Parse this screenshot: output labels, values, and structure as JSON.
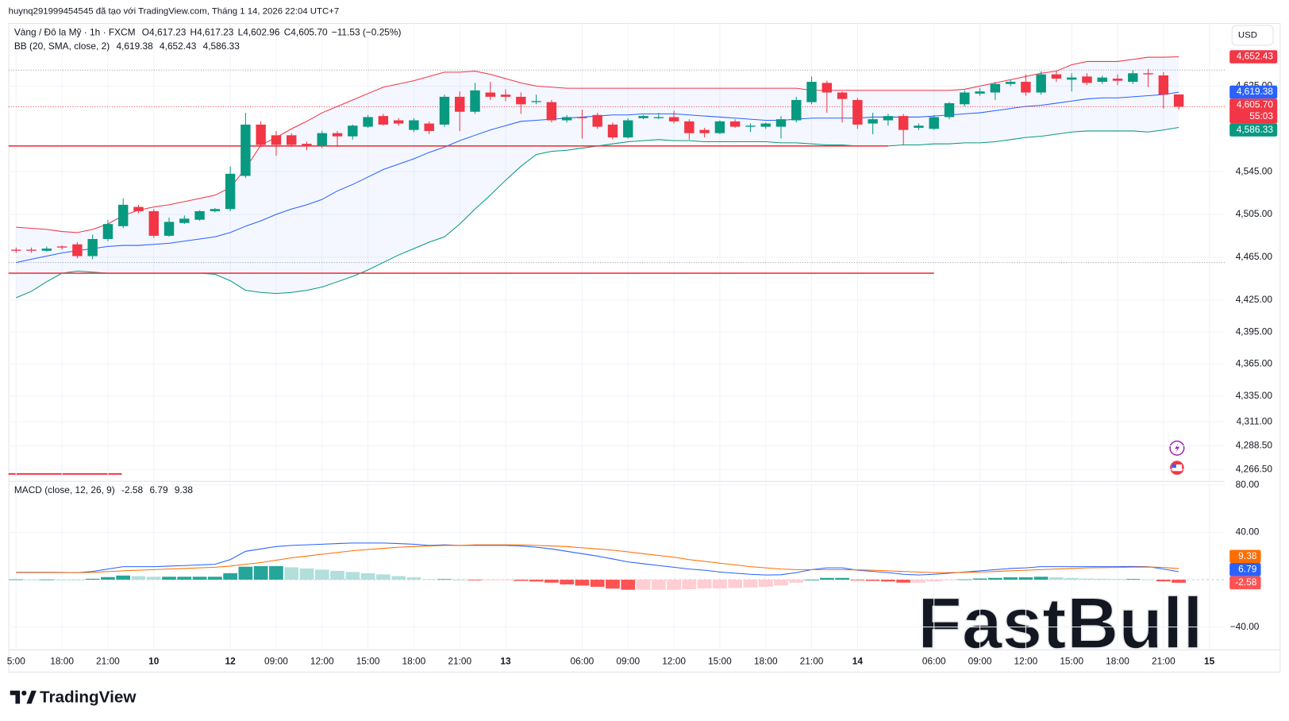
{
  "header": {
    "attribution": "huynq291999454545 đã tạo với TradingView.com, Tháng 1 14, 2026 22:04 UTC+7",
    "symbol": "Vàng / Đô la Mỹ · 1h · FXCM",
    "ohlc": [
      {
        "key": "O",
        "value": "4,617.23"
      },
      {
        "key": "H",
        "value": "4,617.23"
      },
      {
        "key": "L",
        "value": "4,602.96"
      },
      {
        "key": "C",
        "value": "4,605.70"
      }
    ],
    "change": "−11.53 (−0.25%)",
    "countdown": "55:03",
    "currency": "USD",
    "brand": "TradingView",
    "watermark": "FastBull"
  },
  "chart_data": [
    {
      "type": "candlestick",
      "xlim": [
        -0.5,
        79
      ],
      "ylim": [
        4258,
        4684
      ],
      "grid": true,
      "xticks": [
        {
          "value": 0,
          "label": "5:00"
        },
        {
          "value": 3,
          "label": "18:00"
        },
        {
          "value": 6,
          "label": "21:00"
        },
        {
          "value": 9,
          "label": "10"
        },
        {
          "value": 14,
          "label": "12"
        },
        {
          "value": 17,
          "label": "09:00"
        },
        {
          "value": 20,
          "label": "12:00"
        },
        {
          "value": 23,
          "label": "15:00"
        },
        {
          "value": 26,
          "label": "18:00"
        },
        {
          "value": 29,
          "label": "21:00"
        },
        {
          "value": 32,
          "label": "13"
        },
        {
          "value": 37,
          "label": "06:00"
        },
        {
          "value": 40,
          "label": "09:00"
        },
        {
          "value": 43,
          "label": "12:00"
        },
        {
          "value": 46,
          "label": "15:00"
        },
        {
          "value": 49,
          "label": "18:00"
        },
        {
          "value": 52,
          "label": "21:00"
        },
        {
          "value": 55,
          "label": "14"
        },
        {
          "value": 60,
          "label": "06:00"
        },
        {
          "value": 63,
          "label": "09:00"
        },
        {
          "value": 66,
          "label": "12:00"
        },
        {
          "value": 69,
          "label": "15:00"
        },
        {
          "value": 72,
          "label": "18:00"
        },
        {
          "value": 75,
          "label": "21:00"
        },
        {
          "value": 78,
          "label": "15"
        }
      ],
      "yticks": [
        {
          "value": 4625,
          "label": "4,625.00"
        },
        {
          "value": 4545,
          "label": "4,545.00"
        },
        {
          "value": 4505,
          "label": "4,505.00"
        },
        {
          "value": 4465,
          "label": "4,465.00"
        },
        {
          "value": 4425,
          "label": "4,425.00"
        },
        {
          "value": 4395,
          "label": "4,395.00"
        },
        {
          "value": 4365,
          "label": "4,365.00"
        },
        {
          "value": 4335,
          "label": "4,335.00"
        },
        {
          "value": 4311,
          "label": "4,311.00"
        },
        {
          "value": 4288.5,
          "label": "4,288.50"
        },
        {
          "value": 4266.5,
          "label": "4,266.50"
        }
      ],
      "up_color": "#089981",
      "down_color": "#f23645",
      "candles": {
        "open": [
          4472,
          4472,
          4471,
          4475,
          4477,
          4466,
          4482,
          4494,
          4512,
          4508,
          4485,
          4497,
          4500,
          4508,
          4510,
          4541,
          4589,
          4579,
          4579,
          4571,
          4569,
          4581,
          4578,
          4587,
          4597,
          4593,
          4584,
          4590,
          4589,
          4615,
          4601,
          4619,
          4617,
          4615,
          4610,
          4610,
          4593,
          4596,
          4598,
          4589,
          4577,
          4595,
          4595,
          4596,
          4592,
          4584,
          4581,
          4592,
          4587,
          4587,
          4587,
          4593,
          4610,
          4628,
          4619,
          4612,
          4590,
          4593,
          4597,
          4586,
          4585,
          4596,
          4608,
          4618,
          4619,
          4627,
          4629,
          4619,
          4636,
          4631,
          4634,
          4629,
          4632,
          4629,
          4637,
          4635,
          4617.23
        ],
        "high": [
          4474,
          4474,
          4475,
          4476,
          4479,
          4486,
          4500,
          4520,
          4514,
          4510,
          4502,
          4504,
          4509,
          4511,
          4550,
          4600,
          4592,
          4583,
          4581,
          4573,
          4583,
          4583,
          4589,
          4598,
          4599,
          4595,
          4595,
          4592,
          4617,
          4620,
          4628,
          4629,
          4622,
          4619,
          4617,
          4612,
          4598,
          4603,
          4600,
          4591,
          4595,
          4598,
          4600,
          4602,
          4594,
          4586,
          4593,
          4594,
          4590,
          4591,
          4597,
          4615,
          4634,
          4630,
          4620,
          4614,
          4600,
          4599,
          4599,
          4590,
          4598,
          4610,
          4621,
          4623,
          4629,
          4631,
          4636,
          4639,
          4639,
          4637,
          4637,
          4635,
          4636,
          4640,
          4641,
          4638,
          4617.23
        ],
        "low": [
          4469,
          4469,
          4470,
          4472,
          4464,
          4463,
          4480,
          4492,
          4506,
          4483,
          4484,
          4496,
          4499,
          4507,
          4508,
          4539,
          4568,
          4560,
          4568,
          4565,
          4567,
          4568,
          4575,
          4586,
          4588,
          4588,
          4582,
          4580,
          4587,
          4583,
          4599,
          4612,
          4611,
          4599,
          4608,
          4591,
          4591,
          4576,
          4585,
          4575,
          4576,
          4594,
          4594,
          4590,
          4575,
          4577,
          4580,
          4586,
          4582,
          4585,
          4576,
          4591,
          4608,
          4600,
          4591,
          4585,
          4580,
          4588,
          4570,
          4584,
          4584,
          4594,
          4606,
          4616,
          4612,
          4625,
          4616,
          4617,
          4629,
          4620,
          4626,
          4627,
          4626,
          4627,
          4624,
          4604,
          4602.96
        ],
        "close": [
          4471,
          4471,
          4473,
          4474,
          4466,
          4482,
          4496,
          4514,
          4508,
          4485,
          4498,
          4501,
          4508,
          4510,
          4543,
          4589,
          4570,
          4570,
          4570,
          4569,
          4581,
          4578,
          4588,
          4596,
          4589,
          4590,
          4593,
          4583,
          4615,
          4601,
          4621,
          4615,
          4615,
          4608,
          4611,
          4593,
          4596,
          4595,
          4587,
          4577,
          4593,
          4597,
          4596,
          4592,
          4581,
          4581,
          4592,
          4587,
          4588,
          4590,
          4594,
          4612,
          4629,
          4619,
          4613,
          4589,
          4594,
          4597,
          4584,
          4588,
          4596,
          4609,
          4619,
          4620,
          4627,
          4629,
          4619,
          4636,
          4632,
          4633,
          4628,
          4633,
          4630,
          4637,
          4636,
          4617,
          4605.7
        ]
      },
      "bands": {
        "label": "BB (20, SMA, close, 2)",
        "fill": "#2962ff",
        "lines": [
          {
            "color": "#2962ff",
            "value_label": "4,619.38",
            "values": [
              4460,
              4463,
              4466,
              4469,
              4471,
              4473,
              4475,
              4476,
              4476,
              4477,
              4478,
              4480,
              4482,
              4484,
              4488,
              4494,
              4499,
              4505,
              4510,
              4514,
              4519,
              4527,
              4533,
              4540,
              4547,
              4552,
              4557,
              4563,
              4568,
              4574,
              4579,
              4584,
              4588,
              4592,
              4593,
              4594,
              4595,
              4596,
              4597,
              4598,
              4598,
              4599,
              4599,
              4599,
              4598,
              4597,
              4596,
              4595,
              4594,
              4593,
              4593,
              4594,
              4595,
              4595,
              4595,
              4595,
              4596,
              4596,
              4596,
              4596,
              4597,
              4598,
              4599,
              4600,
              4602,
              4604,
              4606,
              4607,
              4609,
              4611,
              4613,
              4614,
              4614,
              4615,
              4616,
              4617,
              4619.38
            ]
          },
          {
            "color": "#f23645",
            "value_label": "4,652.43",
            "values": [
              4493,
              4492,
              4491,
              4489,
              4488,
              4491,
              4496,
              4504,
              4509,
              4512,
              4514,
              4517,
              4520,
              4523,
              4530,
              4548,
              4570,
              4577,
              4585,
              4592,
              4600,
              4606,
              4612,
              4618,
              4624,
              4627,
              4630,
              4634,
              4638,
              4638,
              4639,
              4636,
              4632,
              4628,
              4625,
              4624,
              4623,
              4623,
              4623,
              4623,
              4623,
              4623,
              4623,
              4623,
              4623,
              4623,
              4623,
              4623,
              4623,
              4623,
              4623,
              4623,
              4621,
              4621,
              4621,
              4621,
              4621,
              4621,
              4621,
              4621,
              4621,
              4621,
              4622,
              4625,
              4628,
              4631,
              4634,
              4637,
              4639,
              4645,
              4648,
              4648,
              4648,
              4650,
              4652,
              4652,
              4652.43
            ]
          },
          {
            "color": "#089981",
            "value_label": "4,586.33",
            "values": [
              4427,
              4433,
              4442,
              4450,
              4452,
              4451,
              4450,
              4450,
              4450,
              4450,
              4450,
              4450,
              4450,
              4449,
              4443,
              4434,
              4432,
              4431,
              4432,
              4434,
              4437,
              4442,
              4447,
              4453,
              4460,
              4467,
              4473,
              4479,
              4484,
              4496,
              4510,
              4523,
              4537,
              4550,
              4561,
              4564,
              4565,
              4567,
              4569,
              4571,
              4573,
              4574,
              4575,
              4574,
              4574,
              4573,
              4573,
              4573,
              4573,
              4573,
              4572,
              4572,
              4571,
              4570,
              4570,
              4569,
              4569,
              4569,
              4570,
              4570,
              4571,
              4571,
              4572,
              4572,
              4573,
              4575,
              4577,
              4578,
              4580,
              4582,
              4583,
              4583,
              4583,
              4583,
              4582,
              4584,
              4586.33
            ]
          }
        ]
      },
      "levels": [
        {
          "value": 4569,
          "to": 57,
          "color": "#f23645"
        },
        {
          "value": 4450,
          "to": 60,
          "color": "#f23645"
        }
      ],
      "guides": [
        4640,
        4460
      ]
    },
    {
      "type": "macd",
      "label": "MACD (close, 12, 26, 9)",
      "ylim": [
        -59,
        83.5
      ],
      "yticks": [
        {
          "value": 80,
          "label": "80.00"
        },
        {
          "value": 40,
          "label": "40.00"
        },
        {
          "value": -40,
          "label": "−40.00"
        }
      ],
      "histogram": {
        "value_label": "-2.58",
        "colors": {
          "up_pos": "#26a69a",
          "down_pos": "#b2dfdb",
          "down_neg": "#ff5252",
          "up_neg": "#ffcdd2"
        },
        "values": [
          0.3,
          0.2,
          0.2,
          0.1,
          0,
          0.8,
          2.2,
          3.5,
          3,
          2.5,
          2.5,
          2.5,
          2.5,
          2.5,
          5.5,
          11,
          11.5,
          11.5,
          10.5,
          9.5,
          8.5,
          7.5,
          6.5,
          5.5,
          4.5,
          3,
          2,
          0.5,
          0.5,
          0,
          -0.5,
          -0.5,
          -0.5,
          -1,
          -1.5,
          -2.5,
          -4,
          -5,
          -6,
          -7.5,
          -8.5,
          -8.5,
          -8.5,
          -8.5,
          -8,
          -7.5,
          -7.5,
          -7,
          -6.5,
          -6,
          -4.8,
          -2.5,
          0,
          1.5,
          1.5,
          -0.3,
          -1,
          -1.5,
          -2.5,
          -2.5,
          -1.5,
          -0.5,
          0.3,
          1,
          1.5,
          2,
          2,
          2.5,
          2,
          1.5,
          1,
          0.8,
          0.6,
          0.6,
          0.3,
          -1.4,
          -2.58
        ]
      },
      "lines": [
        {
          "color": "#2962ff",
          "value_label": "6.79",
          "values": [
            6.3,
            6.2,
            6.2,
            6.1,
            6,
            7,
            9,
            11,
            11,
            11,
            11.5,
            12,
            12.5,
            13,
            17,
            24,
            26,
            28,
            29,
            29.5,
            30,
            30.5,
            31,
            31,
            31,
            30.5,
            30,
            29,
            29.5,
            29,
            29,
            29,
            29,
            28.5,
            27.5,
            26,
            24,
            22,
            20,
            17.5,
            15,
            13.5,
            12,
            10.5,
            9,
            8,
            6.5,
            5.5,
            4.5,
            4,
            4.2,
            6,
            8.5,
            10,
            10,
            8,
            7,
            6,
            4.5,
            4,
            4.5,
            5.5,
            6.5,
            7.5,
            8.5,
            9.5,
            10,
            11,
            11,
            11,
            11,
            11,
            11,
            11.2,
            11,
            9,
            6.79
          ]
        },
        {
          "color": "#ff6d00",
          "value_label": "9.38",
          "values": [
            6,
            6,
            6,
            6,
            6,
            6.2,
            6.8,
            7.5,
            8,
            8.5,
            9,
            9.5,
            10,
            10.5,
            11.5,
            13,
            14.5,
            16.5,
            18.5,
            20,
            21.5,
            23,
            24.5,
            25.5,
            26.5,
            27.5,
            28,
            28.5,
            29,
            29,
            29.5,
            29.5,
            29.5,
            29.5,
            29,
            28.5,
            28,
            27,
            26,
            25,
            23.5,
            22,
            20.5,
            19,
            17,
            15.5,
            14,
            12.5,
            11,
            10,
            9,
            8.5,
            8.5,
            8.5,
            8.5,
            8.3,
            8,
            7.5,
            7,
            6.5,
            6,
            6,
            6.2,
            6.5,
            7,
            7.5,
            8,
            8.5,
            9,
            9.5,
            10,
            10.2,
            10.4,
            10.6,
            10.7,
            10.4,
            9.38
          ]
        }
      ]
    }
  ]
}
